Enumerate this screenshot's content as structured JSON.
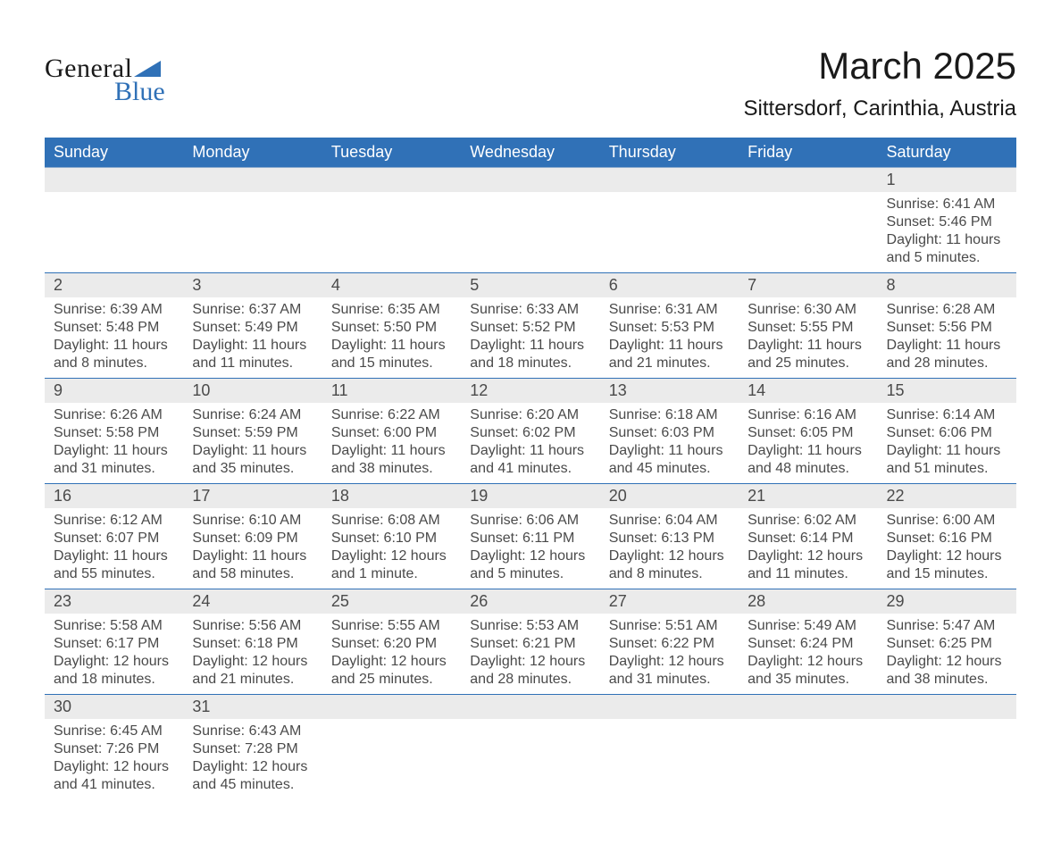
{
  "logo": {
    "word1": "General",
    "word2": "Blue",
    "accent_color": "#3071b7",
    "text_color": "#1a1a1a"
  },
  "title": {
    "month": "March 2025",
    "location": "Sittersdorf, Carinthia, Austria"
  },
  "calendar": {
    "type": "calendar-table",
    "header_bg": "#3071b7",
    "header_text_color": "#ffffff",
    "daynum_bg": "#ebebeb",
    "row_border_color": "#3071b7",
    "text_color": "#4a4a4a",
    "background_color": "#ffffff",
    "columns": [
      "Sunday",
      "Monday",
      "Tuesday",
      "Wednesday",
      "Thursday",
      "Friday",
      "Saturday"
    ],
    "weeks": [
      [
        {
          "day": "",
          "sunrise": "",
          "sunset": "",
          "daylight1": "",
          "daylight2": ""
        },
        {
          "day": "",
          "sunrise": "",
          "sunset": "",
          "daylight1": "",
          "daylight2": ""
        },
        {
          "day": "",
          "sunrise": "",
          "sunset": "",
          "daylight1": "",
          "daylight2": ""
        },
        {
          "day": "",
          "sunrise": "",
          "sunset": "",
          "daylight1": "",
          "daylight2": ""
        },
        {
          "day": "",
          "sunrise": "",
          "sunset": "",
          "daylight1": "",
          "daylight2": ""
        },
        {
          "day": "",
          "sunrise": "",
          "sunset": "",
          "daylight1": "",
          "daylight2": ""
        },
        {
          "day": "1",
          "sunrise": "Sunrise: 6:41 AM",
          "sunset": "Sunset: 5:46 PM",
          "daylight1": "Daylight: 11 hours",
          "daylight2": "and 5 minutes."
        }
      ],
      [
        {
          "day": "2",
          "sunrise": "Sunrise: 6:39 AM",
          "sunset": "Sunset: 5:48 PM",
          "daylight1": "Daylight: 11 hours",
          "daylight2": "and 8 minutes."
        },
        {
          "day": "3",
          "sunrise": "Sunrise: 6:37 AM",
          "sunset": "Sunset: 5:49 PM",
          "daylight1": "Daylight: 11 hours",
          "daylight2": "and 11 minutes."
        },
        {
          "day": "4",
          "sunrise": "Sunrise: 6:35 AM",
          "sunset": "Sunset: 5:50 PM",
          "daylight1": "Daylight: 11 hours",
          "daylight2": "and 15 minutes."
        },
        {
          "day": "5",
          "sunrise": "Sunrise: 6:33 AM",
          "sunset": "Sunset: 5:52 PM",
          "daylight1": "Daylight: 11 hours",
          "daylight2": "and 18 minutes."
        },
        {
          "day": "6",
          "sunrise": "Sunrise: 6:31 AM",
          "sunset": "Sunset: 5:53 PM",
          "daylight1": "Daylight: 11 hours",
          "daylight2": "and 21 minutes."
        },
        {
          "day": "7",
          "sunrise": "Sunrise: 6:30 AM",
          "sunset": "Sunset: 5:55 PM",
          "daylight1": "Daylight: 11 hours",
          "daylight2": "and 25 minutes."
        },
        {
          "day": "8",
          "sunrise": "Sunrise: 6:28 AM",
          "sunset": "Sunset: 5:56 PM",
          "daylight1": "Daylight: 11 hours",
          "daylight2": "and 28 minutes."
        }
      ],
      [
        {
          "day": "9",
          "sunrise": "Sunrise: 6:26 AM",
          "sunset": "Sunset: 5:58 PM",
          "daylight1": "Daylight: 11 hours",
          "daylight2": "and 31 minutes."
        },
        {
          "day": "10",
          "sunrise": "Sunrise: 6:24 AM",
          "sunset": "Sunset: 5:59 PM",
          "daylight1": "Daylight: 11 hours",
          "daylight2": "and 35 minutes."
        },
        {
          "day": "11",
          "sunrise": "Sunrise: 6:22 AM",
          "sunset": "Sunset: 6:00 PM",
          "daylight1": "Daylight: 11 hours",
          "daylight2": "and 38 minutes."
        },
        {
          "day": "12",
          "sunrise": "Sunrise: 6:20 AM",
          "sunset": "Sunset: 6:02 PM",
          "daylight1": "Daylight: 11 hours",
          "daylight2": "and 41 minutes."
        },
        {
          "day": "13",
          "sunrise": "Sunrise: 6:18 AM",
          "sunset": "Sunset: 6:03 PM",
          "daylight1": "Daylight: 11 hours",
          "daylight2": "and 45 minutes."
        },
        {
          "day": "14",
          "sunrise": "Sunrise: 6:16 AM",
          "sunset": "Sunset: 6:05 PM",
          "daylight1": "Daylight: 11 hours",
          "daylight2": "and 48 minutes."
        },
        {
          "day": "15",
          "sunrise": "Sunrise: 6:14 AM",
          "sunset": "Sunset: 6:06 PM",
          "daylight1": "Daylight: 11 hours",
          "daylight2": "and 51 minutes."
        }
      ],
      [
        {
          "day": "16",
          "sunrise": "Sunrise: 6:12 AM",
          "sunset": "Sunset: 6:07 PM",
          "daylight1": "Daylight: 11 hours",
          "daylight2": "and 55 minutes."
        },
        {
          "day": "17",
          "sunrise": "Sunrise: 6:10 AM",
          "sunset": "Sunset: 6:09 PM",
          "daylight1": "Daylight: 11 hours",
          "daylight2": "and 58 minutes."
        },
        {
          "day": "18",
          "sunrise": "Sunrise: 6:08 AM",
          "sunset": "Sunset: 6:10 PM",
          "daylight1": "Daylight: 12 hours",
          "daylight2": "and 1 minute."
        },
        {
          "day": "19",
          "sunrise": "Sunrise: 6:06 AM",
          "sunset": "Sunset: 6:11 PM",
          "daylight1": "Daylight: 12 hours",
          "daylight2": "and 5 minutes."
        },
        {
          "day": "20",
          "sunrise": "Sunrise: 6:04 AM",
          "sunset": "Sunset: 6:13 PM",
          "daylight1": "Daylight: 12 hours",
          "daylight2": "and 8 minutes."
        },
        {
          "day": "21",
          "sunrise": "Sunrise: 6:02 AM",
          "sunset": "Sunset: 6:14 PM",
          "daylight1": "Daylight: 12 hours",
          "daylight2": "and 11 minutes."
        },
        {
          "day": "22",
          "sunrise": "Sunrise: 6:00 AM",
          "sunset": "Sunset: 6:16 PM",
          "daylight1": "Daylight: 12 hours",
          "daylight2": "and 15 minutes."
        }
      ],
      [
        {
          "day": "23",
          "sunrise": "Sunrise: 5:58 AM",
          "sunset": "Sunset: 6:17 PM",
          "daylight1": "Daylight: 12 hours",
          "daylight2": "and 18 minutes."
        },
        {
          "day": "24",
          "sunrise": "Sunrise: 5:56 AM",
          "sunset": "Sunset: 6:18 PM",
          "daylight1": "Daylight: 12 hours",
          "daylight2": "and 21 minutes."
        },
        {
          "day": "25",
          "sunrise": "Sunrise: 5:55 AM",
          "sunset": "Sunset: 6:20 PM",
          "daylight1": "Daylight: 12 hours",
          "daylight2": "and 25 minutes."
        },
        {
          "day": "26",
          "sunrise": "Sunrise: 5:53 AM",
          "sunset": "Sunset: 6:21 PM",
          "daylight1": "Daylight: 12 hours",
          "daylight2": "and 28 minutes."
        },
        {
          "day": "27",
          "sunrise": "Sunrise: 5:51 AM",
          "sunset": "Sunset: 6:22 PM",
          "daylight1": "Daylight: 12 hours",
          "daylight2": "and 31 minutes."
        },
        {
          "day": "28",
          "sunrise": "Sunrise: 5:49 AM",
          "sunset": "Sunset: 6:24 PM",
          "daylight1": "Daylight: 12 hours",
          "daylight2": "and 35 minutes."
        },
        {
          "day": "29",
          "sunrise": "Sunrise: 5:47 AM",
          "sunset": "Sunset: 6:25 PM",
          "daylight1": "Daylight: 12 hours",
          "daylight2": "and 38 minutes."
        }
      ],
      [
        {
          "day": "30",
          "sunrise": "Sunrise: 6:45 AM",
          "sunset": "Sunset: 7:26 PM",
          "daylight1": "Daylight: 12 hours",
          "daylight2": "and 41 minutes."
        },
        {
          "day": "31",
          "sunrise": "Sunrise: 6:43 AM",
          "sunset": "Sunset: 7:28 PM",
          "daylight1": "Daylight: 12 hours",
          "daylight2": "and 45 minutes."
        },
        {
          "day": "",
          "sunrise": "",
          "sunset": "",
          "daylight1": "",
          "daylight2": ""
        },
        {
          "day": "",
          "sunrise": "",
          "sunset": "",
          "daylight1": "",
          "daylight2": ""
        },
        {
          "day": "",
          "sunrise": "",
          "sunset": "",
          "daylight1": "",
          "daylight2": ""
        },
        {
          "day": "",
          "sunrise": "",
          "sunset": "",
          "daylight1": "",
          "daylight2": ""
        },
        {
          "day": "",
          "sunrise": "",
          "sunset": "",
          "daylight1": "",
          "daylight2": ""
        }
      ]
    ]
  }
}
